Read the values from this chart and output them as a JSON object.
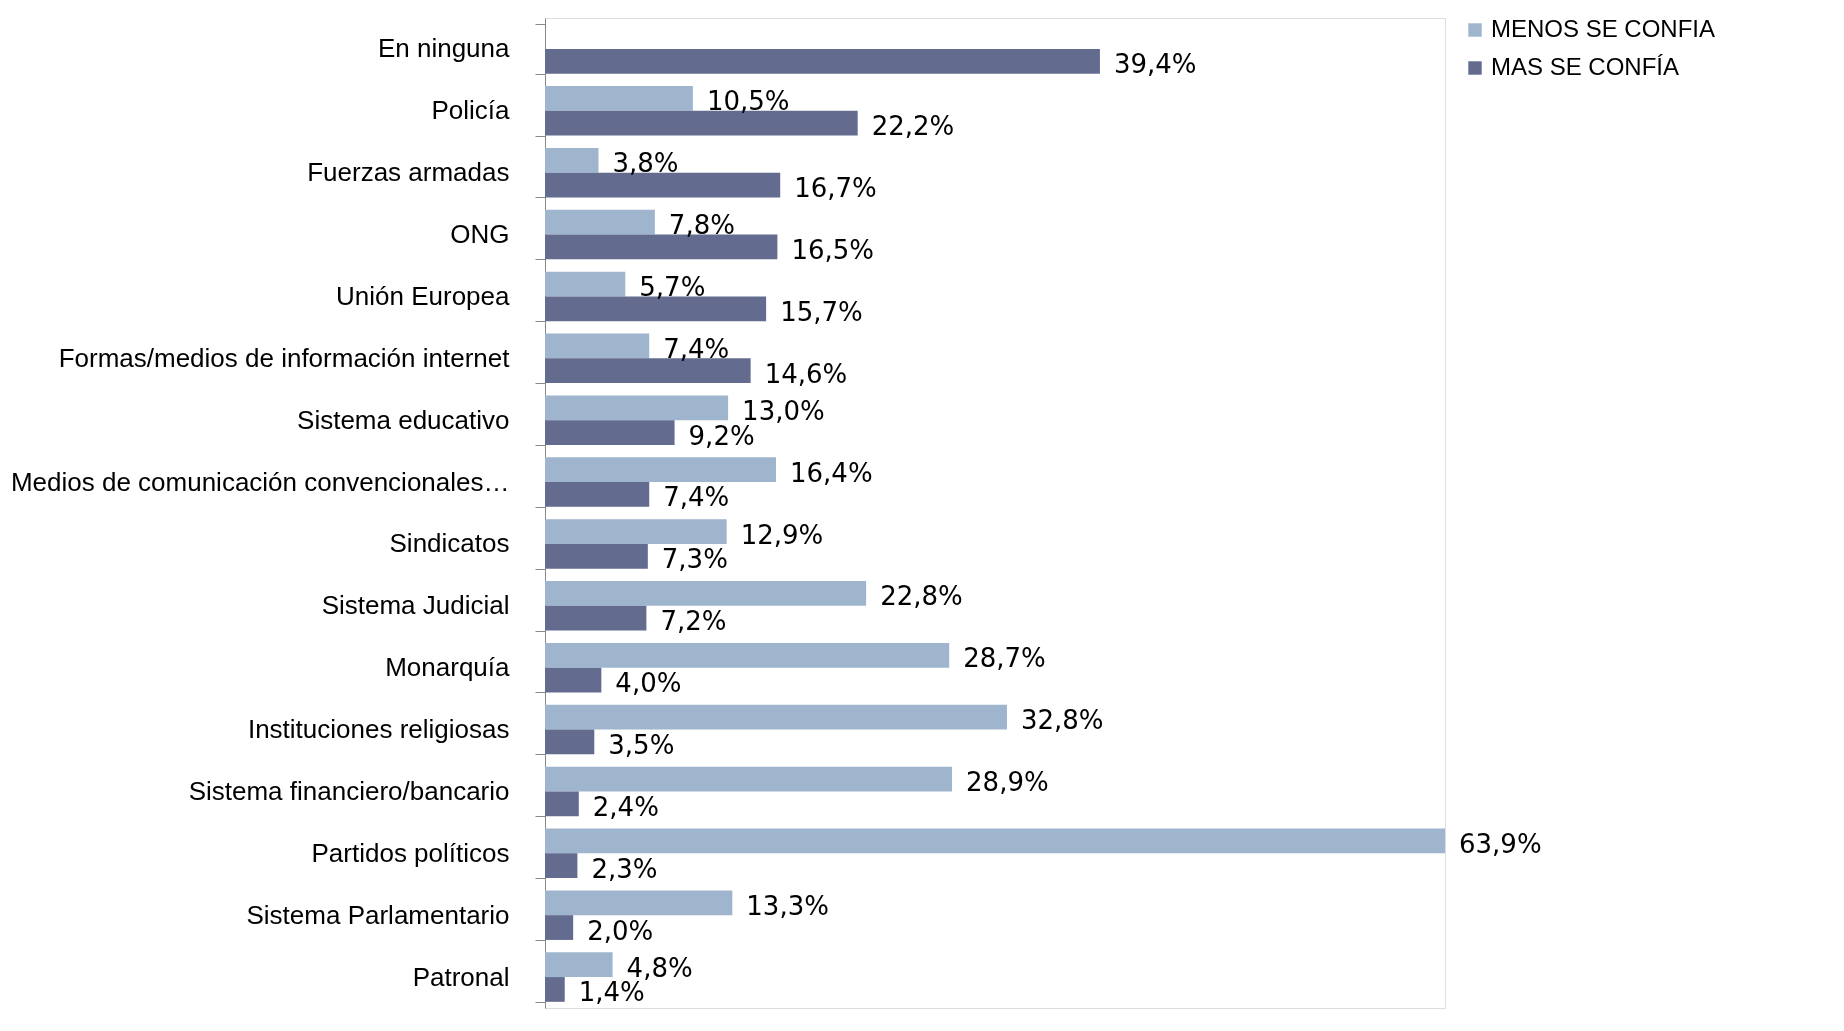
{
  "chart_data": {
    "type": "bar",
    "orientation": "horizontal",
    "legend": "right",
    "grid": false,
    "categories": [
      "En ninguna",
      "Policía",
      "Fuerzas armadas",
      "ONG",
      "Unión Europea",
      "Formas/medios de información internet",
      "Sistema educativo",
      "Medios de comunicación convencionales…",
      "Sindicatos",
      "Sistema Judicial",
      "Monarquía",
      "Instituciones religiosas",
      "Sistema financiero/bancario",
      "Partidos políticos",
      "Sistema Parlamentario",
      "Patronal"
    ],
    "series": [
      {
        "name": "MENOS SE CONFIA",
        "color": "#9fb5ce",
        "values": [
          null,
          10.5,
          3.8,
          7.8,
          5.7,
          7.4,
          13.0,
          16.4,
          12.9,
          22.8,
          28.7,
          32.8,
          28.9,
          63.9,
          13.3,
          4.8
        ],
        "value_labels": [
          null,
          "10,5%",
          "3,8%",
          "7,8%",
          "5,7%",
          "7,4%",
          "13,0%",
          "16,4%",
          "12,9%",
          "22,8%",
          "28,7%",
          "32,8%",
          "28,9%",
          "63,9%",
          "13,3%",
          "4,8%"
        ]
      },
      {
        "name": "MAS SE CONFÍA",
        "color": "#636b8f",
        "values": [
          39.4,
          22.2,
          16.7,
          16.5,
          15.7,
          14.6,
          9.2,
          7.4,
          7.3,
          7.2,
          4.0,
          3.5,
          2.4,
          2.3,
          2.0,
          1.4
        ],
        "value_labels": [
          "39,4%",
          "22,2%",
          "16,7%",
          "16,5%",
          "15,7%",
          "14,6%",
          "9,2%",
          "7,4%",
          "7,3%",
          "7,2%",
          "4,0%",
          "3,5%",
          "2,4%",
          "2,3%",
          "2,0%",
          "1,4%"
        ]
      }
    ]
  }
}
